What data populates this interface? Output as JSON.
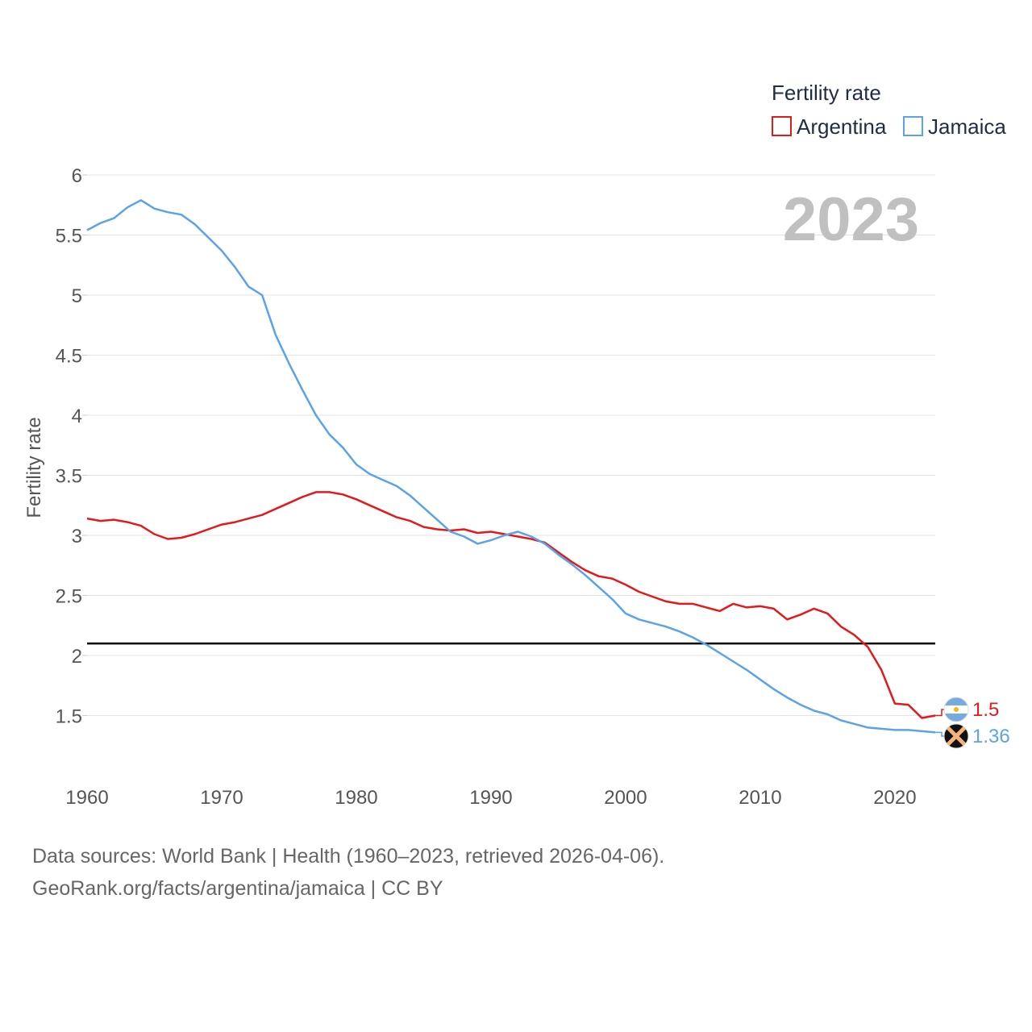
{
  "chart_data": {
    "type": "line",
    "title": "2023",
    "ylabel": "Fertility rate",
    "xlabel": "",
    "xlim": [
      1960,
      2023
    ],
    "ylim": [
      1.0,
      6.0
    ],
    "yticks": [
      1.5,
      2,
      2.5,
      3,
      3.5,
      4,
      4.5,
      5,
      5.5,
      6
    ],
    "ytick_labels": [
      "1.5",
      "2",
      "2.5",
      "3",
      "3.5",
      "4",
      "4.5",
      "5",
      "5.5",
      "6"
    ],
    "xticks": [
      1960,
      1970,
      1980,
      1990,
      2000,
      2010,
      2020
    ],
    "xtick_labels": [
      "1960",
      "1970",
      "1980",
      "1990",
      "2000",
      "2010",
      "2020"
    ],
    "reference_line": {
      "y": 2.1,
      "color": "#000000"
    },
    "legend": {
      "title": "Fertility rate",
      "placement": "top-right"
    },
    "x": [
      1960,
      1961,
      1962,
      1963,
      1964,
      1965,
      1966,
      1967,
      1968,
      1969,
      1970,
      1971,
      1972,
      1973,
      1974,
      1975,
      1976,
      1977,
      1978,
      1979,
      1980,
      1981,
      1982,
      1983,
      1984,
      1985,
      1986,
      1987,
      1988,
      1989,
      1990,
      1991,
      1992,
      1993,
      1994,
      1995,
      1996,
      1997,
      1998,
      1999,
      2000,
      2001,
      2002,
      2003,
      2004,
      2005,
      2006,
      2007,
      2008,
      2009,
      2010,
      2011,
      2012,
      2013,
      2014,
      2015,
      2016,
      2017,
      2018,
      2019,
      2020,
      2021,
      2022,
      2023
    ],
    "series": [
      {
        "name": "Argentina",
        "color": "#e31a1c",
        "end_label": "1.5",
        "values": [
          3.14,
          3.12,
          3.13,
          3.11,
          3.08,
          3.01,
          2.97,
          2.98,
          3.01,
          3.05,
          3.09,
          3.11,
          3.14,
          3.17,
          3.22,
          3.27,
          3.32,
          3.36,
          3.36,
          3.34,
          3.3,
          3.25,
          3.2,
          3.15,
          3.12,
          3.07,
          3.05,
          3.04,
          3.05,
          3.02,
          3.03,
          3.01,
          2.99,
          2.97,
          2.94,
          2.86,
          2.78,
          2.71,
          2.66,
          2.64,
          2.59,
          2.53,
          2.49,
          2.45,
          2.43,
          2.43,
          2.4,
          2.37,
          2.43,
          2.4,
          2.41,
          2.39,
          2.3,
          2.34,
          2.39,
          2.35,
          2.24,
          2.17,
          2.07,
          1.88,
          1.6,
          1.59,
          1.48,
          1.5
        ]
      },
      {
        "name": "Jamaica",
        "color": "#5ba3e8",
        "end_label": "1.36",
        "values": [
          5.54,
          5.6,
          5.64,
          5.73,
          5.79,
          5.72,
          5.69,
          5.67,
          5.59,
          5.48,
          5.37,
          5.23,
          5.07,
          5.0,
          4.67,
          4.43,
          4.21,
          4.0,
          3.84,
          3.73,
          3.59,
          3.51,
          3.46,
          3.41,
          3.33,
          3.23,
          3.13,
          3.03,
          2.99,
          2.93,
          2.96,
          3.0,
          3.03,
          2.99,
          2.93,
          2.84,
          2.76,
          2.67,
          2.57,
          2.47,
          2.35,
          2.3,
          2.27,
          2.24,
          2.2,
          2.15,
          2.09,
          2.02,
          1.95,
          1.88,
          1.8,
          1.72,
          1.65,
          1.59,
          1.54,
          1.51,
          1.46,
          1.43,
          1.4,
          1.39,
          1.38,
          1.38,
          1.37,
          1.36
        ]
      }
    ]
  },
  "footer": {
    "line1": "Data sources: World Bank | Health (1960–2023, retrieved 2026-04-06).",
    "line2": "GeoRank.org/facts/argentina/jamaica | CC BY"
  }
}
